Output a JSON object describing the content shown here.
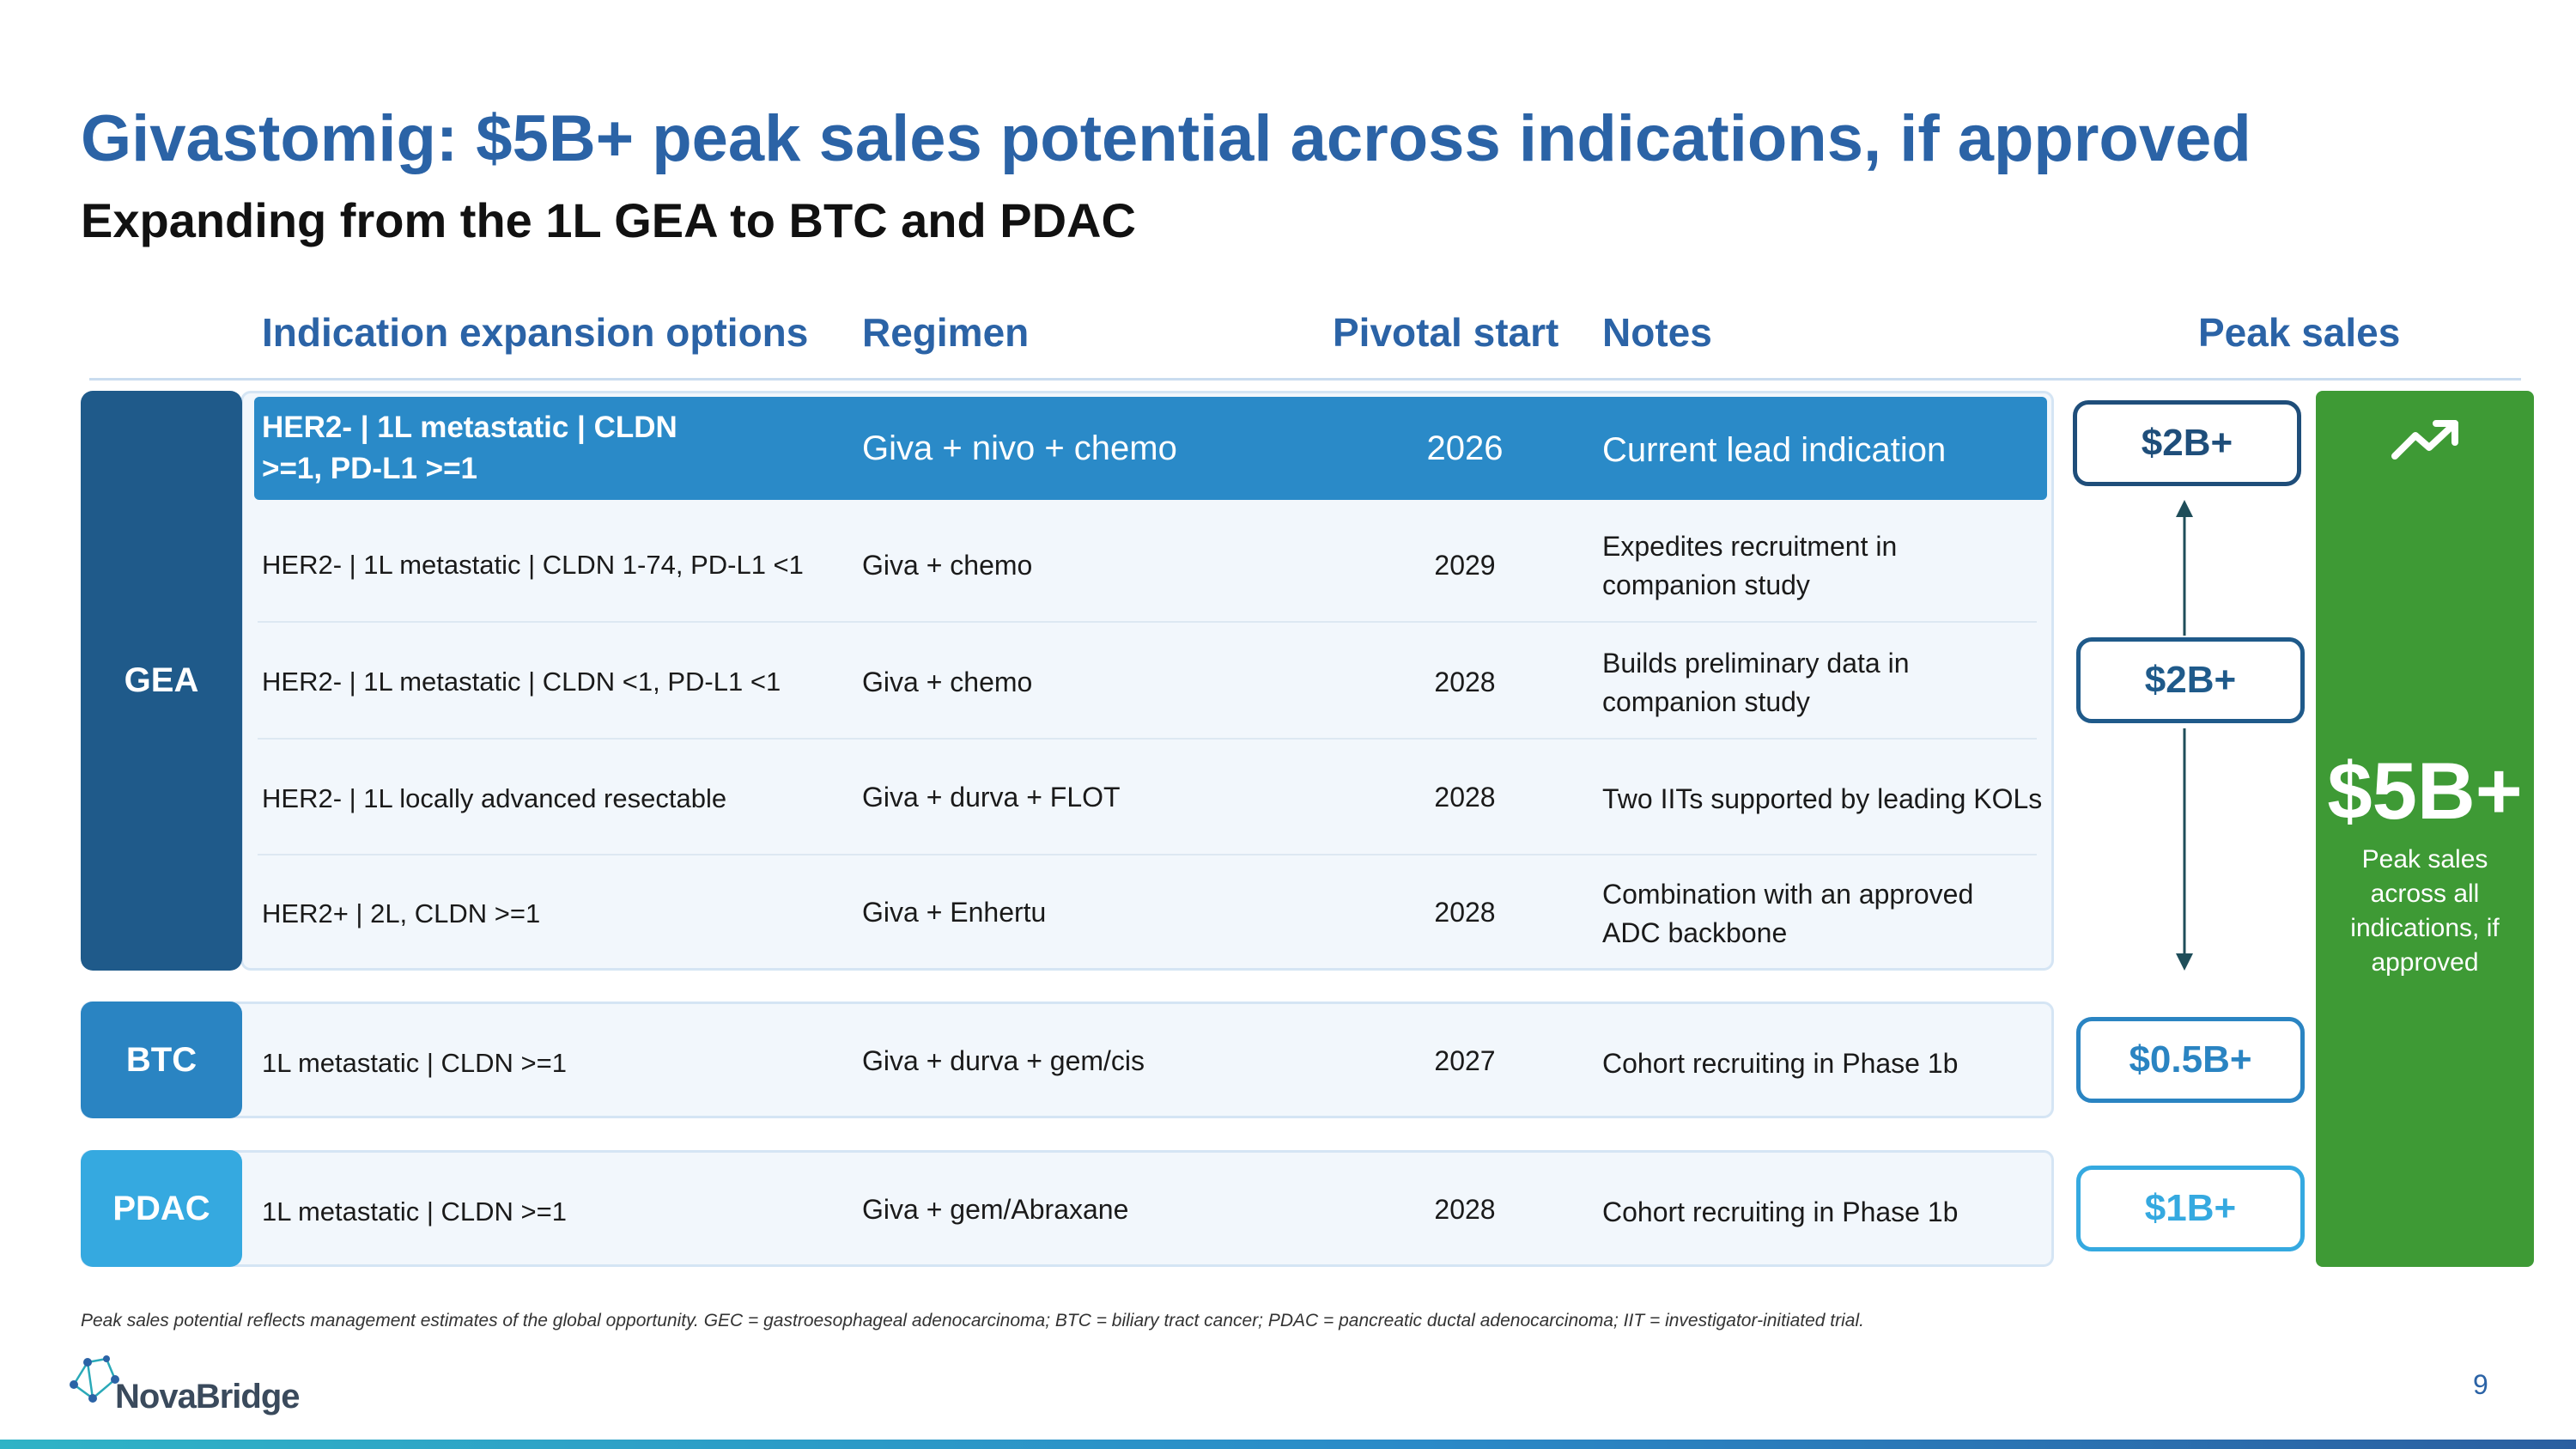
{
  "header": {
    "title": "Givastomig: $5B+ peak sales potential across indications, if approved",
    "subtitle": "Expanding from the 1L GEA to BTC and PDAC"
  },
  "columns": {
    "indication": "Indication expansion options",
    "regimen": "Regimen",
    "pivotal": "Pivotal start",
    "notes": "Notes",
    "peak": "Peak sales"
  },
  "groups": {
    "gea": "GEA",
    "btc": "BTC",
    "pdac": "PDAC"
  },
  "rows": [
    {
      "indication_line1": "HER2- | 1L metastatic | CLDN",
      "indication_line2": ">=1, PD-L1 >=1",
      "regimen": "Giva + nivo + chemo",
      "pivotal": "2026",
      "note": "Current lead indication"
    },
    {
      "indication": "HER2- | 1L metastatic | CLDN 1-74, PD-L1 <1",
      "regimen": "Giva + chemo",
      "pivotal": "2029",
      "note_line1": "Expedites recruitment in",
      "note_line2": "companion study"
    },
    {
      "indication": "HER2- | 1L metastatic | CLDN <1, PD-L1 <1",
      "regimen": "Giva + chemo",
      "pivotal": "2028",
      "note_line1": "Builds preliminary data in",
      "note_line2": "companion study"
    },
    {
      "indication": "HER2- | 1L locally advanced resectable",
      "regimen": "Giva + durva + FLOT",
      "pivotal": "2028",
      "note": "Two IITs supported by leading KOLs"
    },
    {
      "indication": "HER2+ | 2L, CLDN >=1",
      "regimen": "Giva + Enhertu",
      "pivotal": "2028",
      "note_line1": "Combination with an approved",
      "note_line2": "ADC backbone"
    },
    {
      "indication": "1L metastatic | CLDN >=1",
      "regimen": "Giva + durva + gem/cis",
      "pivotal": "2027",
      "note": "Cohort recruiting in Phase 1b"
    },
    {
      "indication": "1L metastatic | CLDN >=1",
      "regimen": "Giva + gem/Abraxane",
      "pivotal": "2028",
      "note": "Cohort recruiting in Phase 1b"
    }
  ],
  "peak_sales": {
    "gea_lead": "$2B+",
    "gea_other": "$2B+",
    "btc": "$0.5B+",
    "pdac": "$1B+",
    "total": "$5B+",
    "total_caption": "Peak sales across all indications, if approved"
  },
  "colors": {
    "title": "#2b63a6",
    "gea": "#1f5a8a",
    "btc": "#2a84c2",
    "pdac": "#35a9e0",
    "highlight": "#2a8ac8",
    "total": "#3e9a35"
  },
  "footnote": "Peak sales potential reflects management estimates of the global opportunity. GEC = gastroesophageal adenocarcinoma; BTC = biliary tract cancer; PDAC = pancreatic ductal adenocarcinoma; IIT = investigator-initiated trial.",
  "brand": {
    "logo_text": "NovaBridge",
    "logo_icon": "network-nodes-icon"
  },
  "page_number": "9"
}
